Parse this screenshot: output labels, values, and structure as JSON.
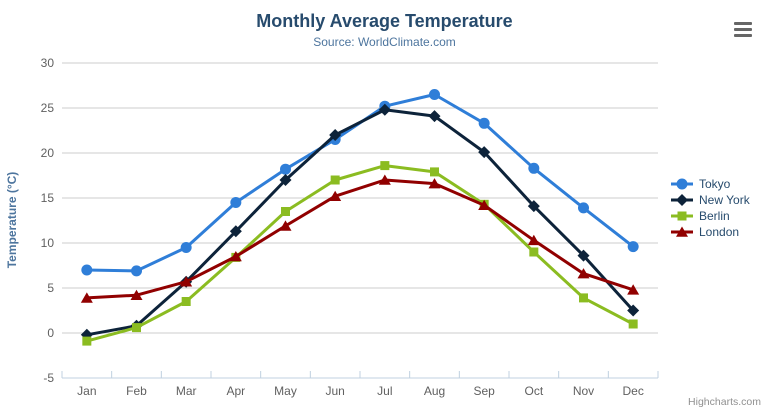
{
  "header": {
    "title": "Monthly Average Temperature",
    "subtitle": "Source: WorldClimate.com"
  },
  "chart_data": {
    "type": "line",
    "title": "Monthly Average Temperature",
    "subtitle": "Source: WorldClimate.com",
    "categories": [
      "Jan",
      "Feb",
      "Mar",
      "Apr",
      "May",
      "Jun",
      "Jul",
      "Aug",
      "Sep",
      "Oct",
      "Nov",
      "Dec"
    ],
    "xlabel": "",
    "ylabel": "Temperature (°C)",
    "ylim": [
      -5,
      30
    ],
    "yticks": [
      -5,
      0,
      5,
      10,
      15,
      20,
      25,
      30
    ],
    "grid": true,
    "legend_position": "right-middle",
    "series": [
      {
        "name": "Tokyo",
        "color": "#2f7ed8",
        "symbol": "circle",
        "values": [
          7.0,
          6.9,
          9.5,
          14.5,
          18.2,
          21.5,
          25.2,
          26.5,
          23.3,
          18.3,
          13.9,
          9.6
        ]
      },
      {
        "name": "New York",
        "color": "#0d233a",
        "symbol": "diamond",
        "values": [
          -0.2,
          0.8,
          5.7,
          11.3,
          17.0,
          22.0,
          24.8,
          24.1,
          20.1,
          14.1,
          8.6,
          2.5
        ]
      },
      {
        "name": "Berlin",
        "color": "#8bbc21",
        "symbol": "square",
        "values": [
          -0.9,
          0.6,
          3.5,
          8.4,
          13.5,
          17.0,
          18.6,
          17.9,
          14.3,
          9.0,
          3.9,
          1.0
        ]
      },
      {
        "name": "London",
        "color": "#910000",
        "symbol": "triangle",
        "values": [
          3.9,
          4.2,
          5.7,
          8.5,
          11.9,
          15.2,
          17.0,
          16.6,
          14.2,
          10.3,
          6.6,
          4.8
        ]
      }
    ]
  },
  "icons": {
    "menu": "hamburger-icon"
  },
  "credits": {
    "label": "Highcharts.com"
  },
  "colors": {
    "title": "#274b6d",
    "subtitle": "#4d759e",
    "axis_title": "#4d759e",
    "axis_label": "#606060",
    "axis_line": "#c0d0e0",
    "grid": "#cccccc",
    "legend_text": "#274b6d",
    "credits": "#909090",
    "menu_icon": "#666666",
    "background": "#ffffff"
  }
}
